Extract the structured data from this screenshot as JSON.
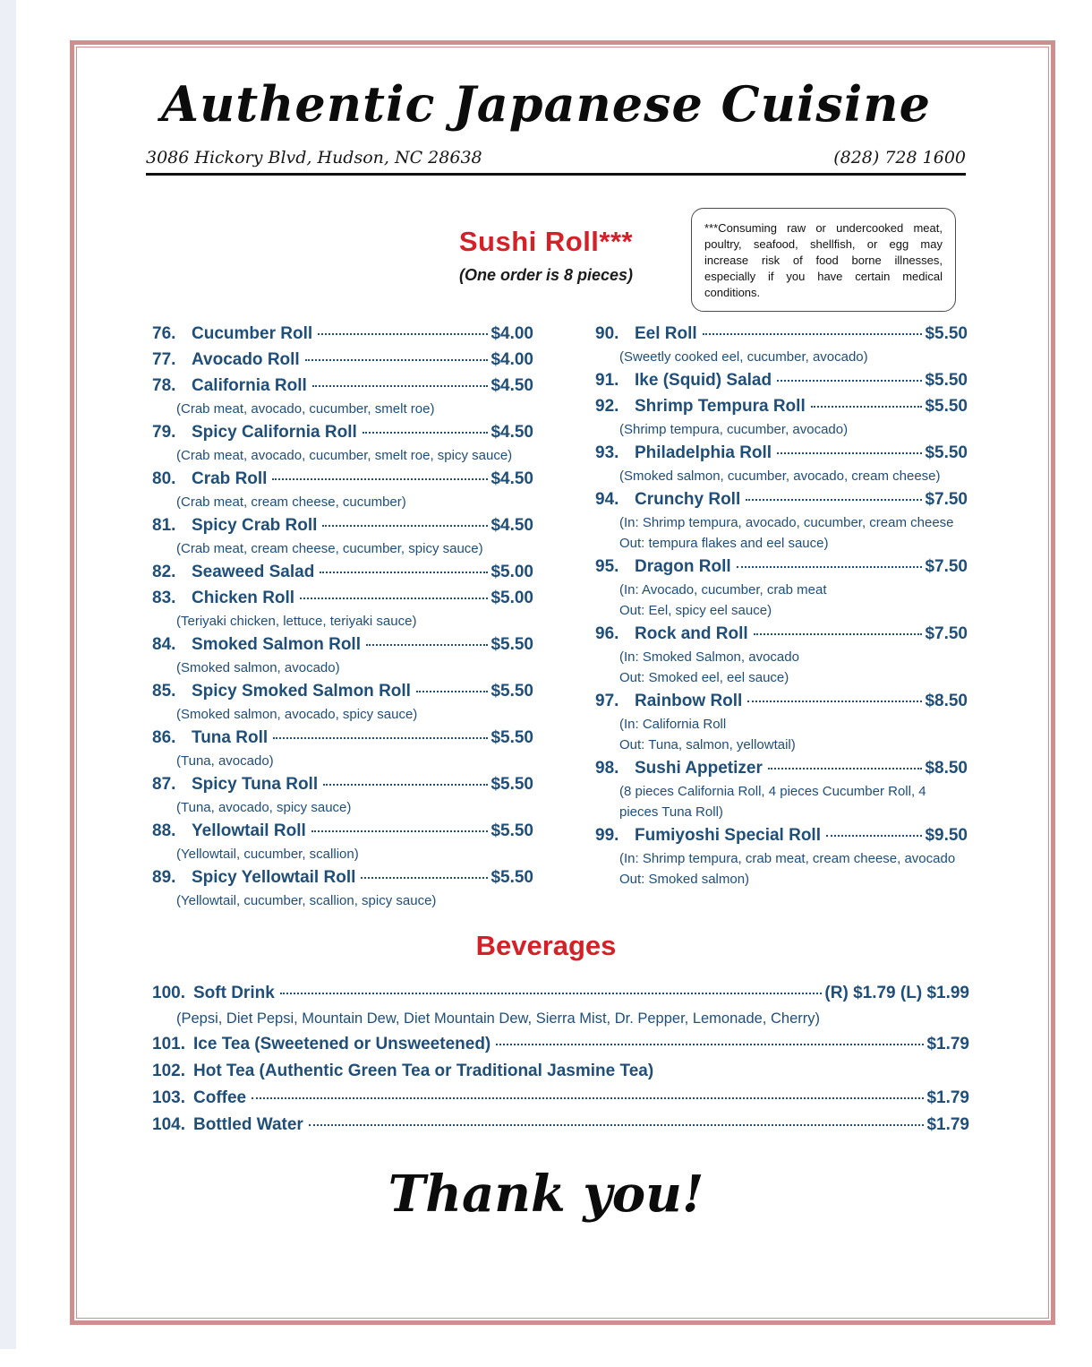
{
  "header": {
    "title": "Authentic Japanese Cuisine",
    "address": "3086 Hickory Blvd, Hudson, NC 28638",
    "phone": "(828) 728 1600"
  },
  "sushi": {
    "title": "Sushi Roll***",
    "subtitle": "(One order is 8 pieces)",
    "disclaimer": "***Consuming raw or undercooked meat, poultry, seafood, shellfish, or egg may increase risk of food borne illnesses, especially if you have certain medical conditions.",
    "left_items": [
      {
        "num": "76.",
        "name": "Cucumber Roll",
        "price": "$4.00",
        "desc": []
      },
      {
        "num": "77.",
        "name": "Avocado Roll",
        "price": "$4.00",
        "desc": []
      },
      {
        "num": "78.",
        "name": "California Roll",
        "price": "$4.50",
        "desc": [
          "(Crab meat, avocado, cucumber, smelt roe)"
        ]
      },
      {
        "num": "79.",
        "name": "Spicy California Roll",
        "price": "$4.50",
        "desc": [
          "(Crab meat, avocado, cucumber, smelt roe, spicy sauce)"
        ]
      },
      {
        "num": "80.",
        "name": "Crab Roll",
        "price": "$4.50",
        "desc": [
          "(Crab meat, cream cheese, cucumber)"
        ]
      },
      {
        "num": "81.",
        "name": "Spicy Crab Roll",
        "price": "$4.50",
        "desc": [
          "(Crab meat, cream cheese, cucumber, spicy sauce)"
        ]
      },
      {
        "num": "82.",
        "name": "Seaweed Salad",
        "price": "$5.00",
        "desc": []
      },
      {
        "num": "83.",
        "name": "Chicken Roll",
        "price": "$5.00",
        "desc": [
          "(Teriyaki chicken, lettuce, teriyaki sauce)"
        ]
      },
      {
        "num": "84.",
        "name": "Smoked Salmon Roll",
        "price": "$5.50",
        "desc": [
          "(Smoked salmon, avocado)"
        ]
      },
      {
        "num": "85.",
        "name": "Spicy Smoked Salmon Roll",
        "price": "$5.50",
        "desc": [
          "(Smoked salmon, avocado, spicy sauce)"
        ]
      },
      {
        "num": "86.",
        "name": "Tuna Roll",
        "price": "$5.50",
        "desc": [
          "(Tuna, avocado)"
        ]
      },
      {
        "num": "87.",
        "name": "Spicy Tuna Roll",
        "price": "$5.50",
        "desc": [
          "(Tuna, avocado, spicy sauce)"
        ]
      },
      {
        "num": "88.",
        "name": "Yellowtail Roll",
        "price": "$5.50",
        "desc": [
          "(Yellowtail, cucumber, scallion)"
        ]
      },
      {
        "num": "89.",
        "name": "Spicy Yellowtail Roll",
        "price": "$5.50",
        "desc": [
          "(Yellowtail, cucumber, scallion, spicy sauce)"
        ]
      }
    ],
    "right_items": [
      {
        "num": "90.",
        "name": "Eel Roll",
        "price": "$5.50",
        "desc": [
          "(Sweetly cooked eel, cucumber, avocado)"
        ]
      },
      {
        "num": "91.",
        "name": "Ike (Squid) Salad",
        "price": "$5.50",
        "desc": []
      },
      {
        "num": "92.",
        "name": "Shrimp Tempura Roll",
        "price": "$5.50",
        "desc": [
          "(Shrimp tempura, cucumber, avocado)"
        ]
      },
      {
        "num": "93.",
        "name": "Philadelphia Roll",
        "price": "$5.50",
        "desc": [
          "(Smoked salmon, cucumber, avocado, cream cheese)"
        ]
      },
      {
        "num": "94.",
        "name": "Crunchy Roll",
        "price": "$7.50",
        "desc": [
          "(In: Shrimp tempura, avocado, cucumber, cream cheese",
          "Out: tempura flakes and eel sauce)"
        ]
      },
      {
        "num": "95.",
        "name": "Dragon Roll",
        "price": "$7.50",
        "desc": [
          "(In: Avocado, cucumber, crab meat",
          "Out: Eel, spicy eel sauce)"
        ]
      },
      {
        "num": "96.",
        "name": "Rock and Roll",
        "price": "$7.50",
        "desc": [
          "(In: Smoked Salmon, avocado",
          "Out: Smoked eel, eel sauce)"
        ]
      },
      {
        "num": "97.",
        "name": "Rainbow Roll",
        "price": "$8.50",
        "desc": [
          "(In: California Roll",
          "Out: Tuna, salmon, yellowtail)"
        ]
      },
      {
        "num": "98.",
        "name": "Sushi Appetizer",
        "price": "$8.50",
        "desc": [
          "(8 pieces California Roll, 4 pieces Cucumber Roll, 4",
          "pieces Tuna Roll)"
        ]
      },
      {
        "num": "99.",
        "name": "Fumiyoshi Special Roll",
        "price": "$9.50",
        "desc": [
          "(In: Shrimp tempura, crab meat, cream cheese, avocado",
          "Out: Smoked salmon)"
        ]
      }
    ]
  },
  "beverages": {
    "title": "Beverages",
    "items": [
      {
        "num": "100.",
        "name": "Soft Drink",
        "price": "(R) $1.79 (L) $1.99",
        "desc": [
          "(Pepsi, Diet Pepsi, Mountain Dew, Diet Mountain Dew, Sierra Mist, Dr. Pepper, Lemonade, Cherry)"
        ]
      },
      {
        "num": "101.",
        "name": "Ice Tea (Sweetened or Unsweetened)",
        "price": "$1.79",
        "desc": []
      },
      {
        "num": "102.",
        "name": "Hot Tea (Authentic Green Tea or Traditional Jasmine Tea)",
        "price": "",
        "desc": []
      },
      {
        "num": "103.",
        "name": "Coffee",
        "price": "$1.79",
        "desc": []
      },
      {
        "num": "104.",
        "name": "Bottled Water",
        "price": "$1.79",
        "desc": []
      }
    ]
  },
  "footer": {
    "thank_you": "Thank you!"
  },
  "colors": {
    "navy_text": "#1f4e79",
    "red_heading": "#d42127",
    "frame_rose": "#cf8f8f"
  }
}
